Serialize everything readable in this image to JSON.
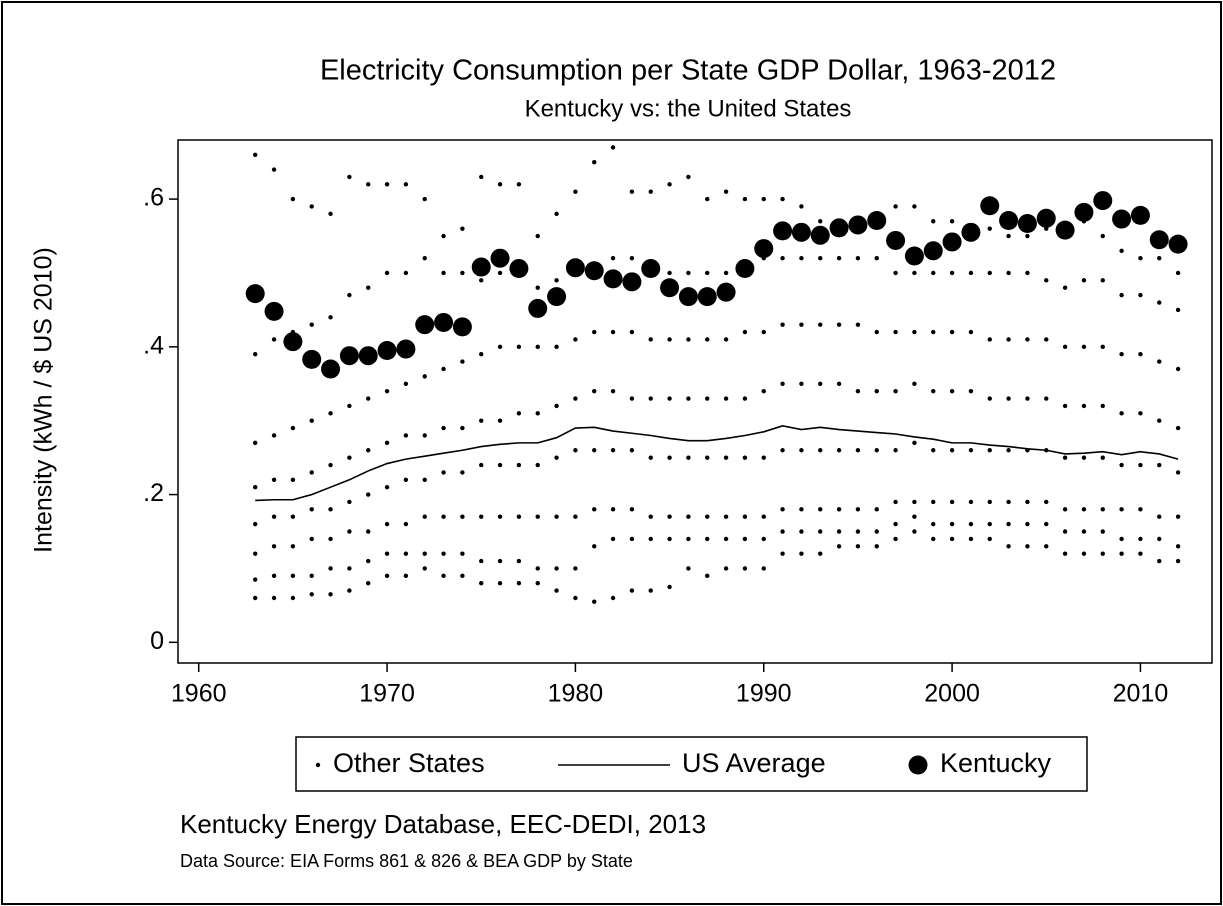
{
  "chart_data": {
    "type": "scatter",
    "title": "Electricity Consumption per State GDP Dollar, 1963-2012",
    "subtitle": "Kentucky vs: the United States",
    "y_label": "Intensity (kWh / $ US 2010)",
    "source": "Kentucky Energy Database, EEC-DEDI, 2013",
    "note": "Data Source: EIA Forms 861 & 826 & BEA GDP by State",
    "xlim": [
      1958.9,
      2013.8
    ],
    "xticks": [
      1960,
      1970,
      1980,
      1990,
      2000,
      2010
    ],
    "ylim": [
      -0.028,
      0.68
    ],
    "yticks": [
      0,
      {
        "value": 0.2,
        "label": ".2"
      },
      {
        "value": 0.4,
        "label": ".4"
      },
      {
        "value": 0.6,
        "label": ".6"
      }
    ],
    "x": [
      1963,
      1964,
      1965,
      1966,
      1967,
      1968,
      1969,
      1970,
      1971,
      1972,
      1973,
      1974,
      1975,
      1976,
      1977,
      1978,
      1979,
      1980,
      1981,
      1982,
      1983,
      1984,
      1985,
      1986,
      1987,
      1988,
      1989,
      1990,
      1991,
      1992,
      1993,
      1994,
      1995,
      1996,
      1997,
      1998,
      1999,
      2000,
      2001,
      2002,
      2003,
      2004,
      2005,
      2006,
      2007,
      2008,
      2009,
      2010,
      2011,
      2012
    ],
    "series": [
      {
        "name": "Other States",
        "type": "scatter",
        "color": "#000000",
        "size": 2.2,
        "values": [
          [
            0.06,
            0.085,
            0.12,
            0.16,
            0.21,
            0.27,
            0.39,
            0.66
          ],
          [
            0.06,
            0.09,
            0.13,
            0.17,
            0.22,
            0.28,
            0.41,
            0.64
          ],
          [
            0.06,
            0.09,
            0.13,
            0.17,
            0.22,
            0.29,
            0.42,
            0.6
          ],
          [
            0.065,
            0.09,
            0.14,
            0.18,
            0.23,
            0.3,
            0.43,
            0.59
          ],
          [
            0.065,
            0.1,
            0.14,
            0.18,
            0.24,
            0.31,
            0.44,
            0.58
          ],
          [
            0.07,
            0.1,
            0.15,
            0.19,
            0.25,
            0.32,
            0.47,
            0.63
          ],
          [
            0.08,
            0.11,
            0.15,
            0.2,
            0.26,
            0.33,
            0.48,
            0.62
          ],
          [
            0.09,
            0.12,
            0.16,
            0.21,
            0.27,
            0.34,
            0.5,
            0.62
          ],
          [
            0.09,
            0.12,
            0.16,
            0.22,
            0.28,
            0.35,
            0.5,
            0.62
          ],
          [
            0.1,
            0.12,
            0.17,
            0.22,
            0.28,
            0.36,
            0.52,
            0.6
          ],
          [
            0.09,
            0.12,
            0.17,
            0.23,
            0.29,
            0.37,
            0.5,
            0.55
          ],
          [
            0.09,
            0.12,
            0.17,
            0.23,
            0.29,
            0.38,
            0.5,
            0.56
          ],
          [
            0.08,
            0.11,
            0.17,
            0.24,
            0.3,
            0.39,
            0.49,
            0.63
          ],
          [
            0.08,
            0.11,
            0.17,
            0.24,
            0.3,
            0.4,
            0.5,
            0.62
          ],
          [
            0.08,
            0.11,
            0.17,
            0.24,
            0.31,
            0.4,
            0.5,
            0.62
          ],
          [
            0.08,
            0.1,
            0.17,
            0.24,
            0.31,
            0.4,
            0.48,
            0.55
          ],
          [
            0.07,
            0.1,
            0.17,
            0.25,
            0.32,
            0.4,
            0.49,
            0.58
          ],
          [
            0.06,
            0.1,
            0.17,
            0.26,
            0.33,
            0.41,
            0.5,
            0.61
          ],
          [
            0.055,
            0.13,
            0.18,
            0.26,
            0.34,
            0.42,
            0.5,
            0.65
          ],
          [
            0.06,
            0.14,
            0.18,
            0.26,
            0.34,
            0.42,
            0.52,
            0.67
          ],
          [
            0.07,
            0.14,
            0.18,
            0.26,
            0.33,
            0.42,
            0.52,
            0.61
          ],
          [
            0.07,
            0.14,
            0.17,
            0.25,
            0.33,
            0.41,
            0.51,
            0.61
          ],
          [
            0.075,
            0.14,
            0.17,
            0.25,
            0.33,
            0.41,
            0.5,
            0.62
          ],
          [
            0.1,
            0.14,
            0.17,
            0.25,
            0.33,
            0.41,
            0.5,
            0.63
          ],
          [
            0.09,
            0.14,
            0.17,
            0.25,
            0.33,
            0.41,
            0.5,
            0.6
          ],
          [
            0.1,
            0.14,
            0.17,
            0.25,
            0.33,
            0.41,
            0.5,
            0.61
          ],
          [
            0.1,
            0.14,
            0.17,
            0.25,
            0.33,
            0.42,
            0.5,
            0.6
          ],
          [
            0.1,
            0.14,
            0.17,
            0.25,
            0.34,
            0.42,
            0.52,
            0.6
          ],
          [
            0.12,
            0.15,
            0.18,
            0.26,
            0.35,
            0.43,
            0.52,
            0.6
          ],
          [
            0.12,
            0.15,
            0.18,
            0.26,
            0.35,
            0.43,
            0.52,
            0.59
          ],
          [
            0.12,
            0.15,
            0.18,
            0.26,
            0.35,
            0.43,
            0.52,
            0.57
          ],
          [
            0.13,
            0.15,
            0.18,
            0.26,
            0.35,
            0.43,
            0.52,
            0.57
          ],
          [
            0.13,
            0.15,
            0.18,
            0.26,
            0.34,
            0.43,
            0.52,
            0.57
          ],
          [
            0.13,
            0.15,
            0.18,
            0.26,
            0.34,
            0.42,
            0.52,
            0.58
          ],
          [
            0.14,
            0.16,
            0.19,
            0.26,
            0.34,
            0.42,
            0.5,
            0.59
          ],
          [
            0.15,
            0.17,
            0.19,
            0.27,
            0.35,
            0.42,
            0.5,
            0.59
          ],
          [
            0.14,
            0.16,
            0.19,
            0.26,
            0.34,
            0.42,
            0.5,
            0.57
          ],
          [
            0.14,
            0.16,
            0.19,
            0.26,
            0.34,
            0.42,
            0.5,
            0.57
          ],
          [
            0.14,
            0.16,
            0.19,
            0.26,
            0.34,
            0.42,
            0.5,
            0.56
          ],
          [
            0.14,
            0.16,
            0.19,
            0.26,
            0.33,
            0.41,
            0.5,
            0.56
          ],
          [
            0.13,
            0.16,
            0.19,
            0.26,
            0.33,
            0.41,
            0.5,
            0.55
          ],
          [
            0.13,
            0.16,
            0.19,
            0.26,
            0.33,
            0.41,
            0.5,
            0.55
          ],
          [
            0.13,
            0.16,
            0.19,
            0.26,
            0.33,
            0.41,
            0.49,
            0.56
          ],
          [
            0.12,
            0.15,
            0.18,
            0.25,
            0.32,
            0.4,
            0.48,
            0.56
          ],
          [
            0.12,
            0.15,
            0.18,
            0.25,
            0.32,
            0.4,
            0.49,
            0.57
          ],
          [
            0.12,
            0.15,
            0.18,
            0.25,
            0.32,
            0.4,
            0.49,
            0.55
          ],
          [
            0.12,
            0.14,
            0.18,
            0.24,
            0.31,
            0.39,
            0.47,
            0.53
          ],
          [
            0.12,
            0.14,
            0.18,
            0.24,
            0.31,
            0.39,
            0.47,
            0.52
          ],
          [
            0.11,
            0.14,
            0.17,
            0.24,
            0.3,
            0.38,
            0.46,
            0.52
          ],
          [
            0.11,
            0.13,
            0.17,
            0.23,
            0.29,
            0.37,
            0.45,
            0.5
          ]
        ]
      },
      {
        "name": "US Average",
        "type": "line",
        "color": "#000000",
        "values": [
          0.192,
          0.193,
          0.193,
          0.2,
          0.21,
          0.22,
          0.232,
          0.242,
          0.248,
          0.252,
          0.256,
          0.26,
          0.265,
          0.268,
          0.27,
          0.27,
          0.277,
          0.29,
          0.291,
          0.286,
          0.283,
          0.28,
          0.276,
          0.273,
          0.273,
          0.276,
          0.28,
          0.285,
          0.293,
          0.288,
          0.291,
          0.288,
          0.286,
          0.284,
          0.282,
          0.278,
          0.275,
          0.27,
          0.27,
          0.267,
          0.265,
          0.262,
          0.26,
          0.255,
          0.256,
          0.258,
          0.254,
          0.258,
          0.255,
          0.248
        ]
      },
      {
        "name": "Kentucky",
        "type": "scatter",
        "color": "#000000",
        "size": 9.5,
        "values": [
          0.472,
          0.448,
          0.407,
          0.383,
          0.37,
          0.388,
          0.388,
          0.395,
          0.397,
          0.43,
          0.433,
          0.427,
          0.508,
          0.52,
          0.506,
          0.452,
          0.468,
          0.507,
          0.503,
          0.492,
          0.488,
          0.506,
          0.48,
          0.468,
          0.468,
          0.474,
          0.506,
          0.533,
          0.557,
          0.555,
          0.551,
          0.561,
          0.565,
          0.571,
          0.544,
          0.523,
          0.53,
          0.542,
          0.555,
          0.591,
          0.571,
          0.567,
          0.574,
          0.558,
          0.582,
          0.598,
          0.573,
          0.578,
          0.545,
          0.539
        ]
      }
    ]
  }
}
